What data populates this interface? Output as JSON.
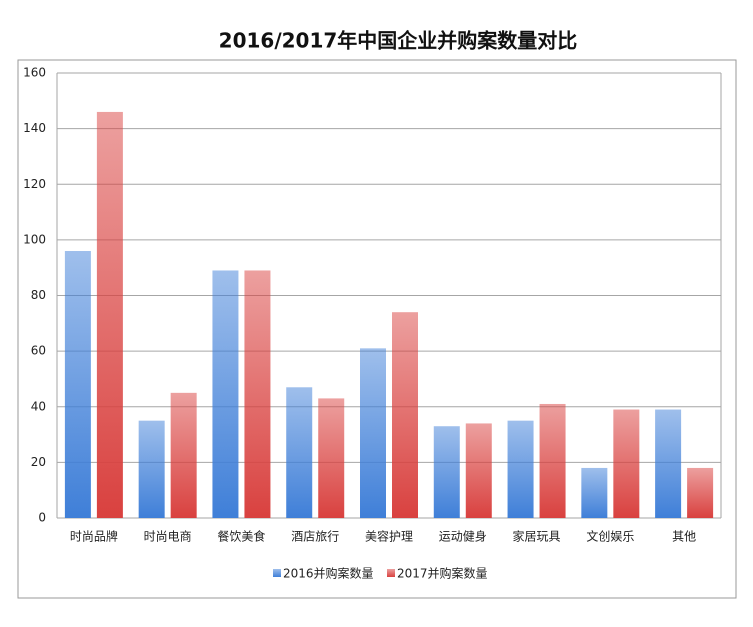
{
  "chart_data": {
    "type": "bar",
    "title": "2016/2017年中国企业并购案数量对比",
    "categories": [
      "时尚品牌",
      "时尚电商",
      "餐饮美食",
      "酒店旅行",
      "美容护理",
      "运动健身",
      "家居玩具",
      "文创娱乐",
      "其他"
    ],
    "series": [
      {
        "name": "2016并购案数量",
        "color": "#3f7fd8",
        "values": [
          96,
          35,
          89,
          47,
          61,
          33,
          35,
          18,
          39
        ]
      },
      {
        "name": "2017并购案数量",
        "color": "#d9413f",
        "values": [
          146,
          45,
          89,
          43,
          74,
          34,
          41,
          39,
          18
        ]
      }
    ],
    "ylim": [
      0,
      160
    ],
    "yticks": [
      0,
      20,
      40,
      60,
      80,
      100,
      120,
      140,
      160
    ],
    "grid": true
  }
}
